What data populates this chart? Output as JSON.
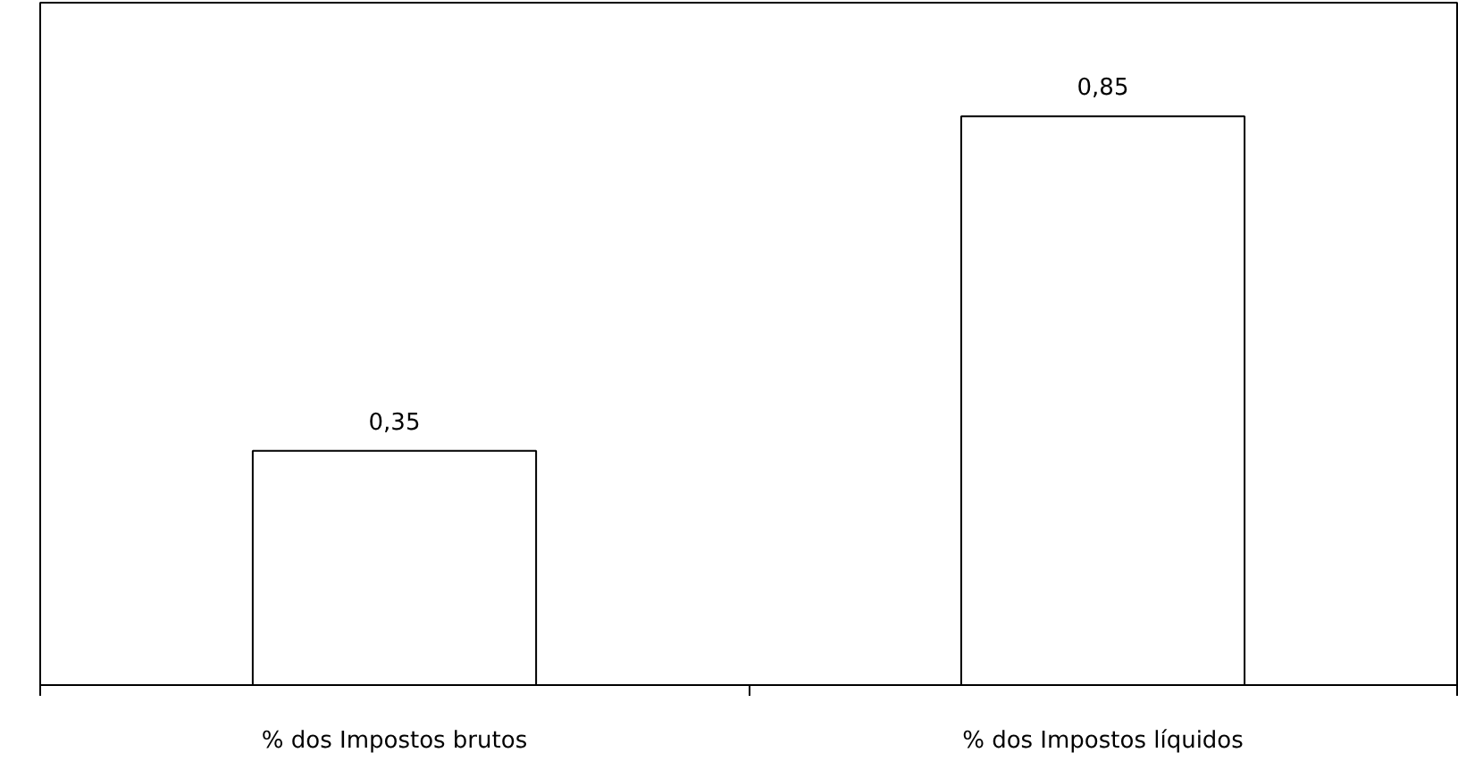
{
  "chart_data": {
    "type": "bar",
    "categories": [
      "% dos Impostos brutos",
      "% dos Impostos líquidos"
    ],
    "values": [
      0.35,
      0.85
    ],
    "value_labels": [
      "0,35",
      "0,85"
    ],
    "color": "#ffffff",
    "ylim": [
      0,
      1.02
    ],
    "grid": false
  }
}
